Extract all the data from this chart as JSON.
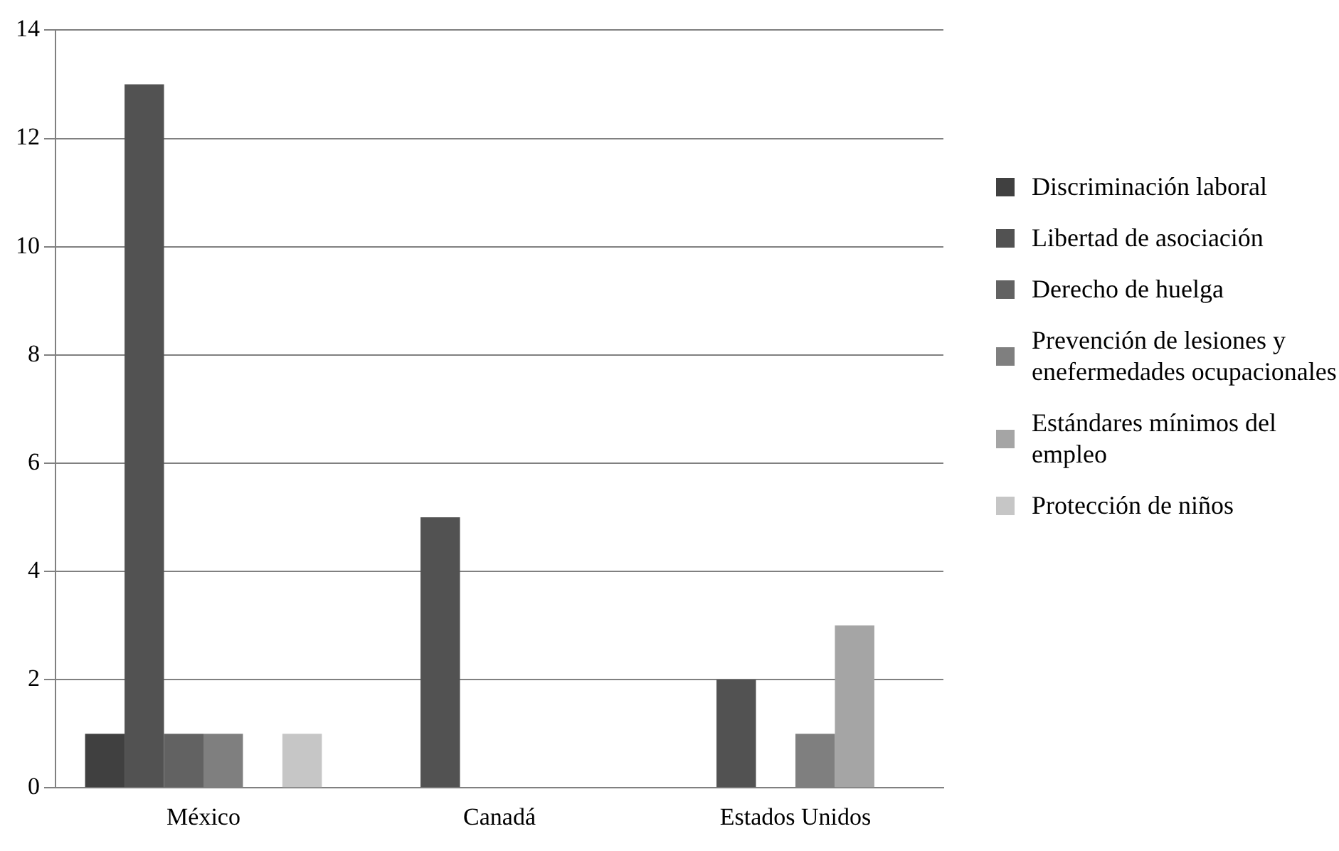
{
  "chart_data": {
    "type": "bar",
    "categories": [
      "México",
      "Canadá",
      "Estados Unidos"
    ],
    "series": [
      {
        "name": "Discriminación laboral",
        "color": "#404040",
        "values": [
          1,
          0,
          0
        ]
      },
      {
        "name": "Libertad de asociación",
        "color": "#525252",
        "values": [
          13,
          5,
          2
        ]
      },
      {
        "name": "Derecho de huelga",
        "color": "#626262",
        "values": [
          1,
          0,
          0
        ]
      },
      {
        "name": "Prevención de lesiones y enefermedades ocupacionales",
        "color": "#7f7f7f",
        "values": [
          1,
          0,
          1
        ]
      },
      {
        "name": "Estándares mínimos del empleo",
        "color": "#a5a5a5",
        "values": [
          0,
          0,
          3
        ]
      },
      {
        "name": "Protección de niños",
        "color": "#c6c6c6",
        "values": [
          1,
          0,
          0
        ]
      }
    ],
    "ylim": [
      0,
      14
    ],
    "yticks": [
      0,
      2,
      4,
      6,
      8,
      10,
      12,
      14
    ],
    "grid": "y",
    "legend": "right"
  }
}
